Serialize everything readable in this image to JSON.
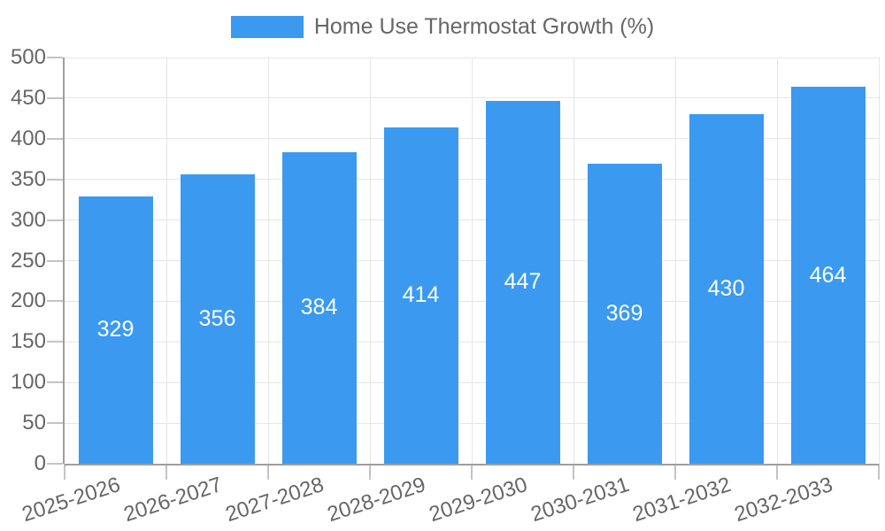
{
  "legend": {
    "label": "Home Use Thermostat Growth (%)"
  },
  "colors": {
    "bar": "#3b9af0",
    "grid": "#e6e6e6",
    "axis_line": "#9e9e9e",
    "tick": "#c4c4c4",
    "axis_label_text": "#666666",
    "legend_text": "#666666",
    "value_label_text": "#ffffff",
    "background": "#ffffff"
  },
  "chart_data": {
    "type": "bar",
    "title": "Home Use Thermostat Growth (%)",
    "categories": [
      "2025-2026",
      "2026-2027",
      "2027-2028",
      "2028-2029",
      "2029-2030",
      "2030-2031",
      "2031-2032",
      "2032-2033"
    ],
    "values": [
      329,
      356,
      384,
      414,
      447,
      369,
      430,
      464
    ],
    "xlabel": "",
    "ylabel": "",
    "ylim": [
      0,
      500
    ],
    "ytick_step": 50,
    "ytick_labels": [
      "0",
      "50",
      "100",
      "150",
      "200",
      "250",
      "300",
      "350",
      "400",
      "450",
      "500"
    ],
    "grid": "horizontal and vertical",
    "legend_position": "top-center",
    "value_labels": "inside-center, white",
    "x_label_rotation_deg": -18
  }
}
